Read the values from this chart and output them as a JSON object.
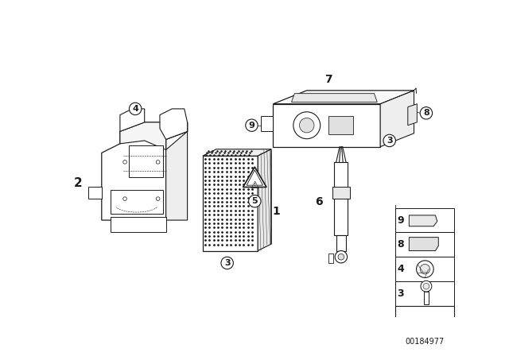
{
  "bg_color": "#ffffff",
  "line_color": "#1a1a1a",
  "part_number": "00184977",
  "figsize": [
    6.4,
    4.48
  ],
  "dpi": 100
}
